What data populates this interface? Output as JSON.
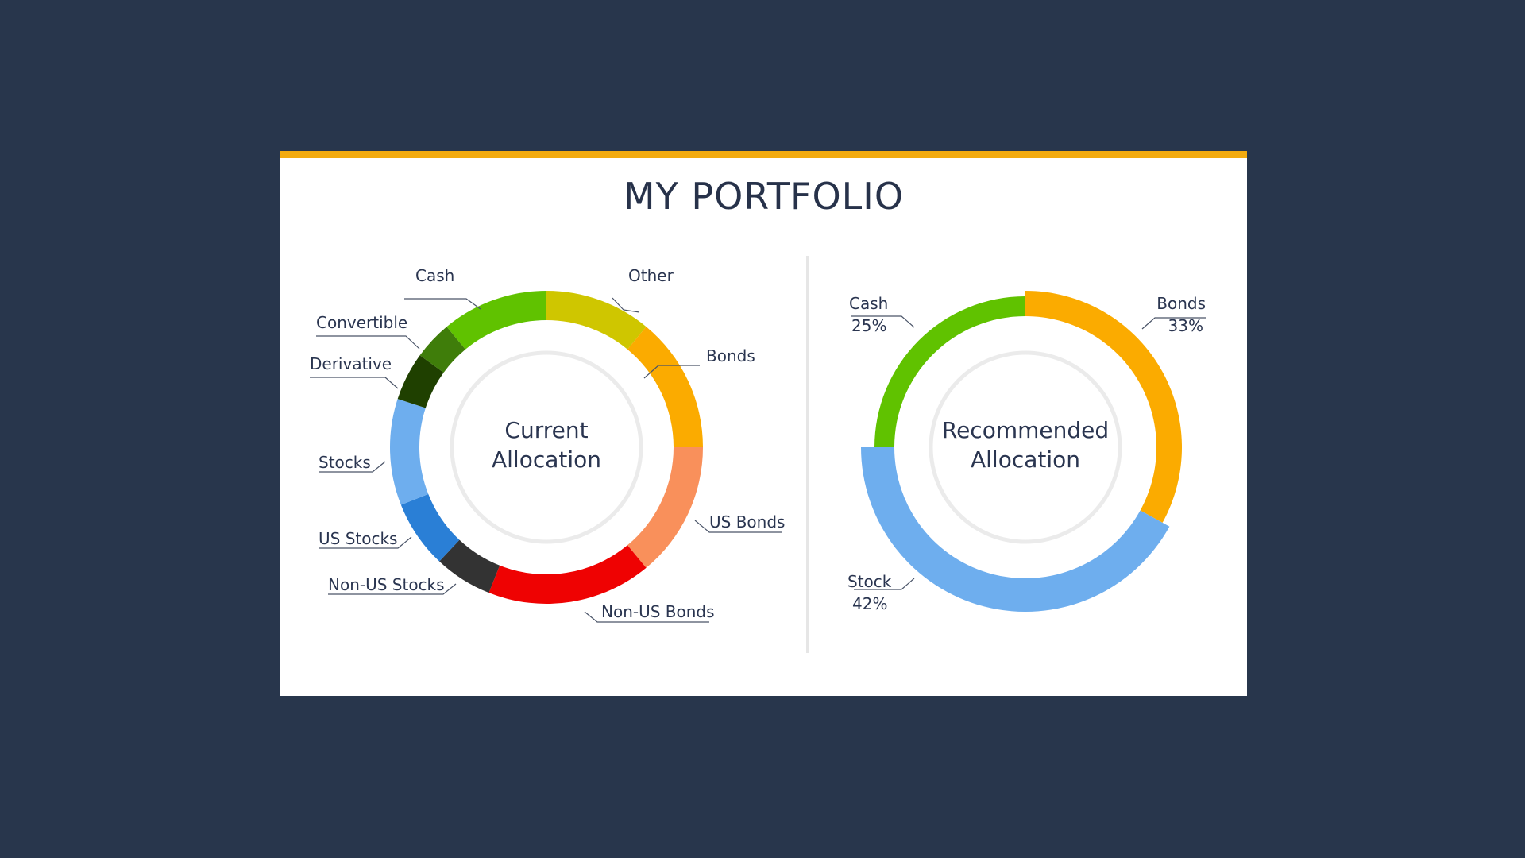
{
  "title": "MY PORTFOLIO",
  "colors": {
    "accent": "#f3ab10",
    "background": "#28364c",
    "text": "#2a3550",
    "inner_ring": "#ebebeb"
  },
  "chart_data": [
    {
      "type": "pie",
      "variant": "donut",
      "center_label": [
        "Current",
        "Allocation"
      ],
      "slices": [
        {
          "label": "Other",
          "value": 11,
          "color": "#cfc600"
        },
        {
          "label": "Bonds",
          "value": 14,
          "color": "#fbab00"
        },
        {
          "label": "US Bonds",
          "value": 14,
          "color": "#f9905b"
        },
        {
          "label": "Non-US Bonds",
          "value": 17,
          "color": "#ef0202"
        },
        {
          "label": "Non-US Stocks",
          "value": 6,
          "color": "#333333"
        },
        {
          "label": "US Stocks",
          "value": 7,
          "color": "#2a7fd6"
        },
        {
          "label": "Stocks",
          "value": 11,
          "color": "#6eaeee"
        },
        {
          "label": "Derivative",
          "value": 5,
          "color": "#1f4000"
        },
        {
          "label": "Convertible",
          "value": 4,
          "color": "#3f7d0a"
        },
        {
          "label": "Cash",
          "value": 11,
          "color": "#60c200"
        }
      ]
    },
    {
      "type": "pie",
      "variant": "donut",
      "center_label": [
        "Recommended",
        "Allocation"
      ],
      "slices": [
        {
          "label": "Bonds",
          "value": 33,
          "value_label": "33%",
          "color": "#fbab00"
        },
        {
          "label": "Stock",
          "value": 42,
          "value_label": "42%",
          "color": "#6eaeee"
        },
        {
          "label": "Cash",
          "value": 25,
          "value_label": "25%",
          "color": "#60c200"
        }
      ]
    }
  ]
}
